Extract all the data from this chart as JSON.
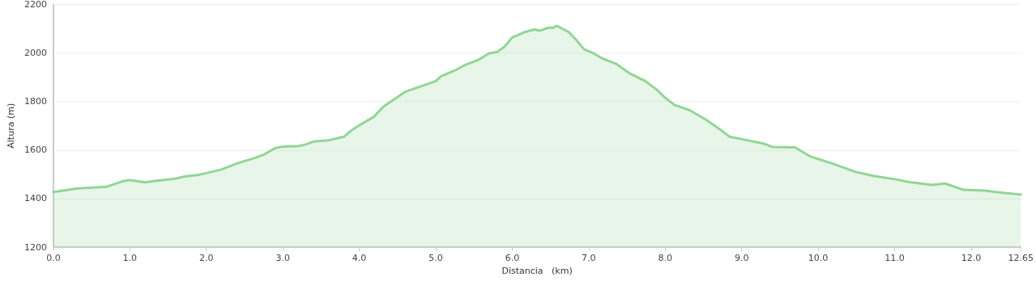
{
  "chart_data": {
    "type": "area",
    "xlabel": "Distancia   (km)",
    "ylabel": "Altura (m)",
    "x": [
      0,
      0.2,
      0.3,
      0.7,
      0.9,
      1.0,
      1.2,
      1.4,
      1.6,
      1.7,
      1.9,
      2.0,
      2.2,
      2.4,
      2.6,
      2.75,
      2.9,
      3.0,
      3.2,
      3.3,
      3.4,
      3.6,
      3.8,
      3.9,
      4.0,
      4.19,
      4.32,
      4.6,
      4.8,
      5.0,
      5.07,
      5.25,
      5.38,
      5.56,
      5.7,
      5.8,
      5.9,
      6.0,
      6.16,
      6.29,
      6.36,
      6.48,
      6.53,
      6.58,
      6.74,
      6.84,
      6.94,
      7.05,
      7.18,
      7.36,
      7.53,
      7.74,
      7.88,
      8.01,
      8.12,
      8.25,
      8.32,
      8.53,
      8.73,
      8.84,
      9.11,
      9.28,
      9.4,
      9.7,
      9.9,
      10.18,
      10.49,
      10.73,
      11.0,
      11.21,
      11.49,
      11.66,
      11.9,
      12.18,
      12.39,
      12.65
    ],
    "series": [
      {
        "color": "#93d597",
        "values": [
          1427,
          1436,
          1441,
          1449,
          1471,
          1476,
          1467,
          1475,
          1482,
          1490,
          1498,
          1505,
          1520,
          1545,
          1564,
          1581,
          1608,
          1614,
          1616,
          1623,
          1635,
          1640,
          1655,
          1682,
          1702,
          1737,
          1780,
          1840,
          1862,
          1884,
          1904,
          1928,
          1950,
          1972,
          1999,
          2004,
          2026,
          2064,
          2086,
          2097,
          2092,
          2105,
          2103,
          2112,
          2086,
          2053,
          2015,
          2001,
          1977,
          1955,
          1917,
          1884,
          1851,
          1813,
          1786,
          1772,
          1764,
          1726,
          1682,
          1655,
          1638,
          1627,
          1613,
          1611,
          1573,
          1545,
          1510,
          1493,
          1480,
          1467,
          1456,
          1462,
          1436,
          1433,
          1425,
          1416
        ]
      }
    ],
    "xlim": [
      0,
      12.65
    ],
    "xticks": [
      {
        "value": 0,
        "label": "0.0"
      },
      {
        "value": 1,
        "label": "1.0"
      },
      {
        "value": 2,
        "label": "2.0"
      },
      {
        "value": 3,
        "label": "3.0"
      },
      {
        "value": 4,
        "label": "4.0"
      },
      {
        "value": 5,
        "label": "5.0"
      },
      {
        "value": 6,
        "label": "6.0"
      },
      {
        "value": 7,
        "label": "7.0"
      },
      {
        "value": 8,
        "label": "8.0"
      },
      {
        "value": 9,
        "label": "9.0"
      },
      {
        "value": 10,
        "label": "10.0"
      },
      {
        "value": 11,
        "label": "11.0"
      },
      {
        "value": 12,
        "label": "12.0"
      },
      12.65
    ],
    "ylim": [
      1200,
      2200
    ],
    "yticks": [
      1200,
      1400,
      1600,
      1800,
      2000,
      2200
    ],
    "grid": "y",
    "marker": "none",
    "line_style": "solid"
  }
}
